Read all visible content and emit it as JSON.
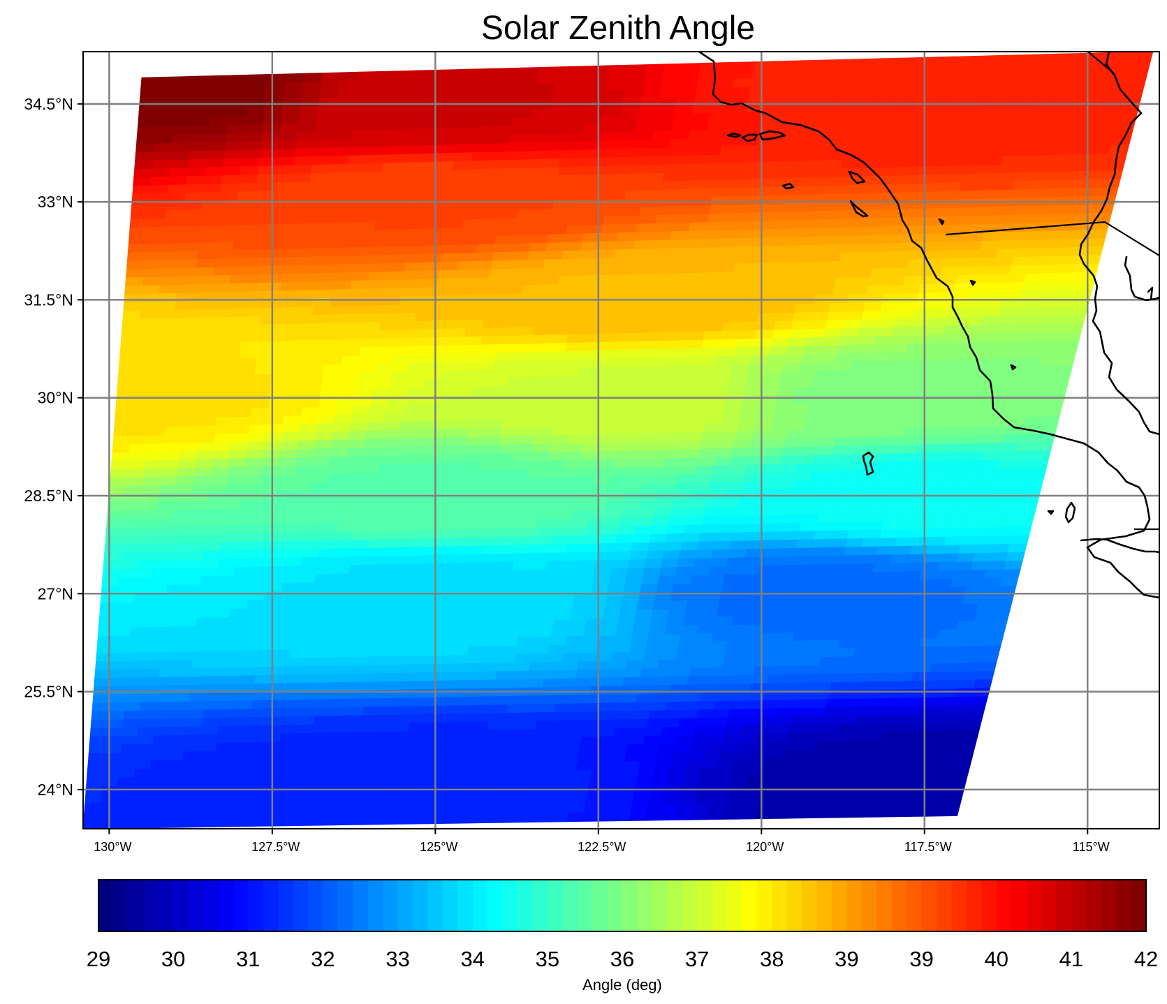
{
  "title": "Solar Zenith Angle",
  "map": {
    "lat_tick_labels": [
      "34.5°N",
      "33°N",
      "31.5°N",
      "30°N",
      "28.5°N",
      "27°N",
      "25.5°N",
      "24°N"
    ],
    "lon_tick_labels": [
      "130°W",
      "127.5°W",
      "125°W",
      "122.5°W",
      "120°W",
      "117.5°W",
      "115°W"
    ],
    "grid": true,
    "coastline_color": "#000000",
    "grid_color": "#808080",
    "frame_color": "#000000"
  },
  "colorbar": {
    "colormap": "jet",
    "levels": 70,
    "tick_labels": [
      "29",
      "30",
      "31",
      "32",
      "33",
      "34",
      "35",
      "36",
      "37",
      "38",
      "39",
      "39",
      "40",
      "41",
      "42"
    ],
    "label": "Angle (deg)",
    "orientation": "horizontal",
    "placement": "bottom"
  },
  "chart_data": {
    "type": "heatmap",
    "title": "Solar Zenith Angle",
    "xlabel": "",
    "ylabel": "",
    "colorbar_label": "Angle (deg)",
    "x_range_lon": [
      -130.4,
      -113.9
    ],
    "y_range_lat": [
      23.4,
      35.3
    ],
    "value_range": [
      29,
      42
    ],
    "x_tick_values": [
      -130,
      -127.5,
      -125,
      -122.5,
      -120,
      -117.5,
      -115
    ],
    "y_tick_values": [
      24,
      25.5,
      27,
      28.5,
      30,
      31.5,
      33,
      34.5
    ],
    "swath_corners": [
      {
        "lon": -129.5,
        "lat": 34.9
      },
      {
        "lon": -114.0,
        "lat": 35.3
      },
      {
        "lon": -117.0,
        "lat": 23.6
      },
      {
        "lon": -130.4,
        "lat": 23.4
      }
    ],
    "sample_values": [
      {
        "lon": -129.0,
        "lat": 34.7,
        "value": 42
      },
      {
        "lon": -125.0,
        "lat": 34.5,
        "value": 41
      },
      {
        "lon": -118.0,
        "lat": 34.7,
        "value": 40
      },
      {
        "lon": -125.0,
        "lat": 33.0,
        "value": 39.5
      },
      {
        "lon": -122.0,
        "lat": 31.5,
        "value": 38
      },
      {
        "lon": -129.5,
        "lat": 30.0,
        "value": 37.5
      },
      {
        "lon": -122.0,
        "lat": 30.0,
        "value": 36.5
      },
      {
        "lon": -118.0,
        "lat": 30.0,
        "value": 35.5
      },
      {
        "lon": -125.0,
        "lat": 28.5,
        "value": 35
      },
      {
        "lon": -117.5,
        "lat": 28.5,
        "value": 34
      },
      {
        "lon": -125.0,
        "lat": 27.0,
        "value": 33.5
      },
      {
        "lon": -119.0,
        "lat": 27.0,
        "value": 32
      },
      {
        "lon": -125.0,
        "lat": 24.0,
        "value": 31
      },
      {
        "lon": -117.5,
        "lat": 24.0,
        "value": 29.5
      }
    ]
  }
}
